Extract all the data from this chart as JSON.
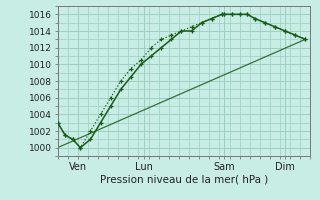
{
  "bg_color": "#c8ede4",
  "grid_color": "#9ecec4",
  "line_color": "#1a5c1a",
  "title": "Pression niveau de la mer( hPa )",
  "ylim": [
    999,
    1017
  ],
  "xlim": [
    0,
    100
  ],
  "xtick_positions": [
    8,
    34,
    66,
    90
  ],
  "xtick_labels": [
    "Ven",
    "Lun",
    "Sam",
    "Dim"
  ],
  "ytick_positions": [
    1000,
    1002,
    1004,
    1006,
    1008,
    1010,
    1012,
    1014,
    1016
  ],
  "series1_x": [
    0,
    3,
    6,
    9,
    13,
    17,
    21,
    25,
    29,
    33,
    37,
    41,
    45,
    49,
    53,
    57,
    61,
    65,
    66,
    69,
    72,
    75,
    78,
    82,
    86,
    90,
    94,
    98
  ],
  "series1_y": [
    1003,
    1001.5,
    1001,
    1000,
    1001,
    1003,
    1005,
    1007,
    1008.5,
    1010,
    1011,
    1012,
    1013,
    1014,
    1014,
    1015,
    1015.5,
    1016,
    1016,
    1016,
    1016,
    1016,
    1015.5,
    1015,
    1014.5,
    1014,
    1013.5,
    1013
  ],
  "series2_x": [
    0,
    3,
    6,
    9,
    13,
    17,
    21,
    25,
    29,
    33,
    37,
    41,
    45,
    49,
    53,
    57,
    61,
    65,
    66,
    69,
    72,
    75,
    78,
    82,
    86,
    90,
    94,
    98
  ],
  "series2_y": [
    1003,
    1001.5,
    1001,
    1000,
    1002,
    1004,
    1006,
    1008,
    1009.5,
    1010.5,
    1012,
    1013,
    1013.5,
    1014,
    1014.5,
    1015,
    1015.5,
    1016,
    1016,
    1016,
    1016,
    1016,
    1015.5,
    1015,
    1014.5,
    1014,
    1013.5,
    1013
  ],
  "series3_x": [
    0,
    98
  ],
  "series3_y": [
    1000,
    1013
  ]
}
